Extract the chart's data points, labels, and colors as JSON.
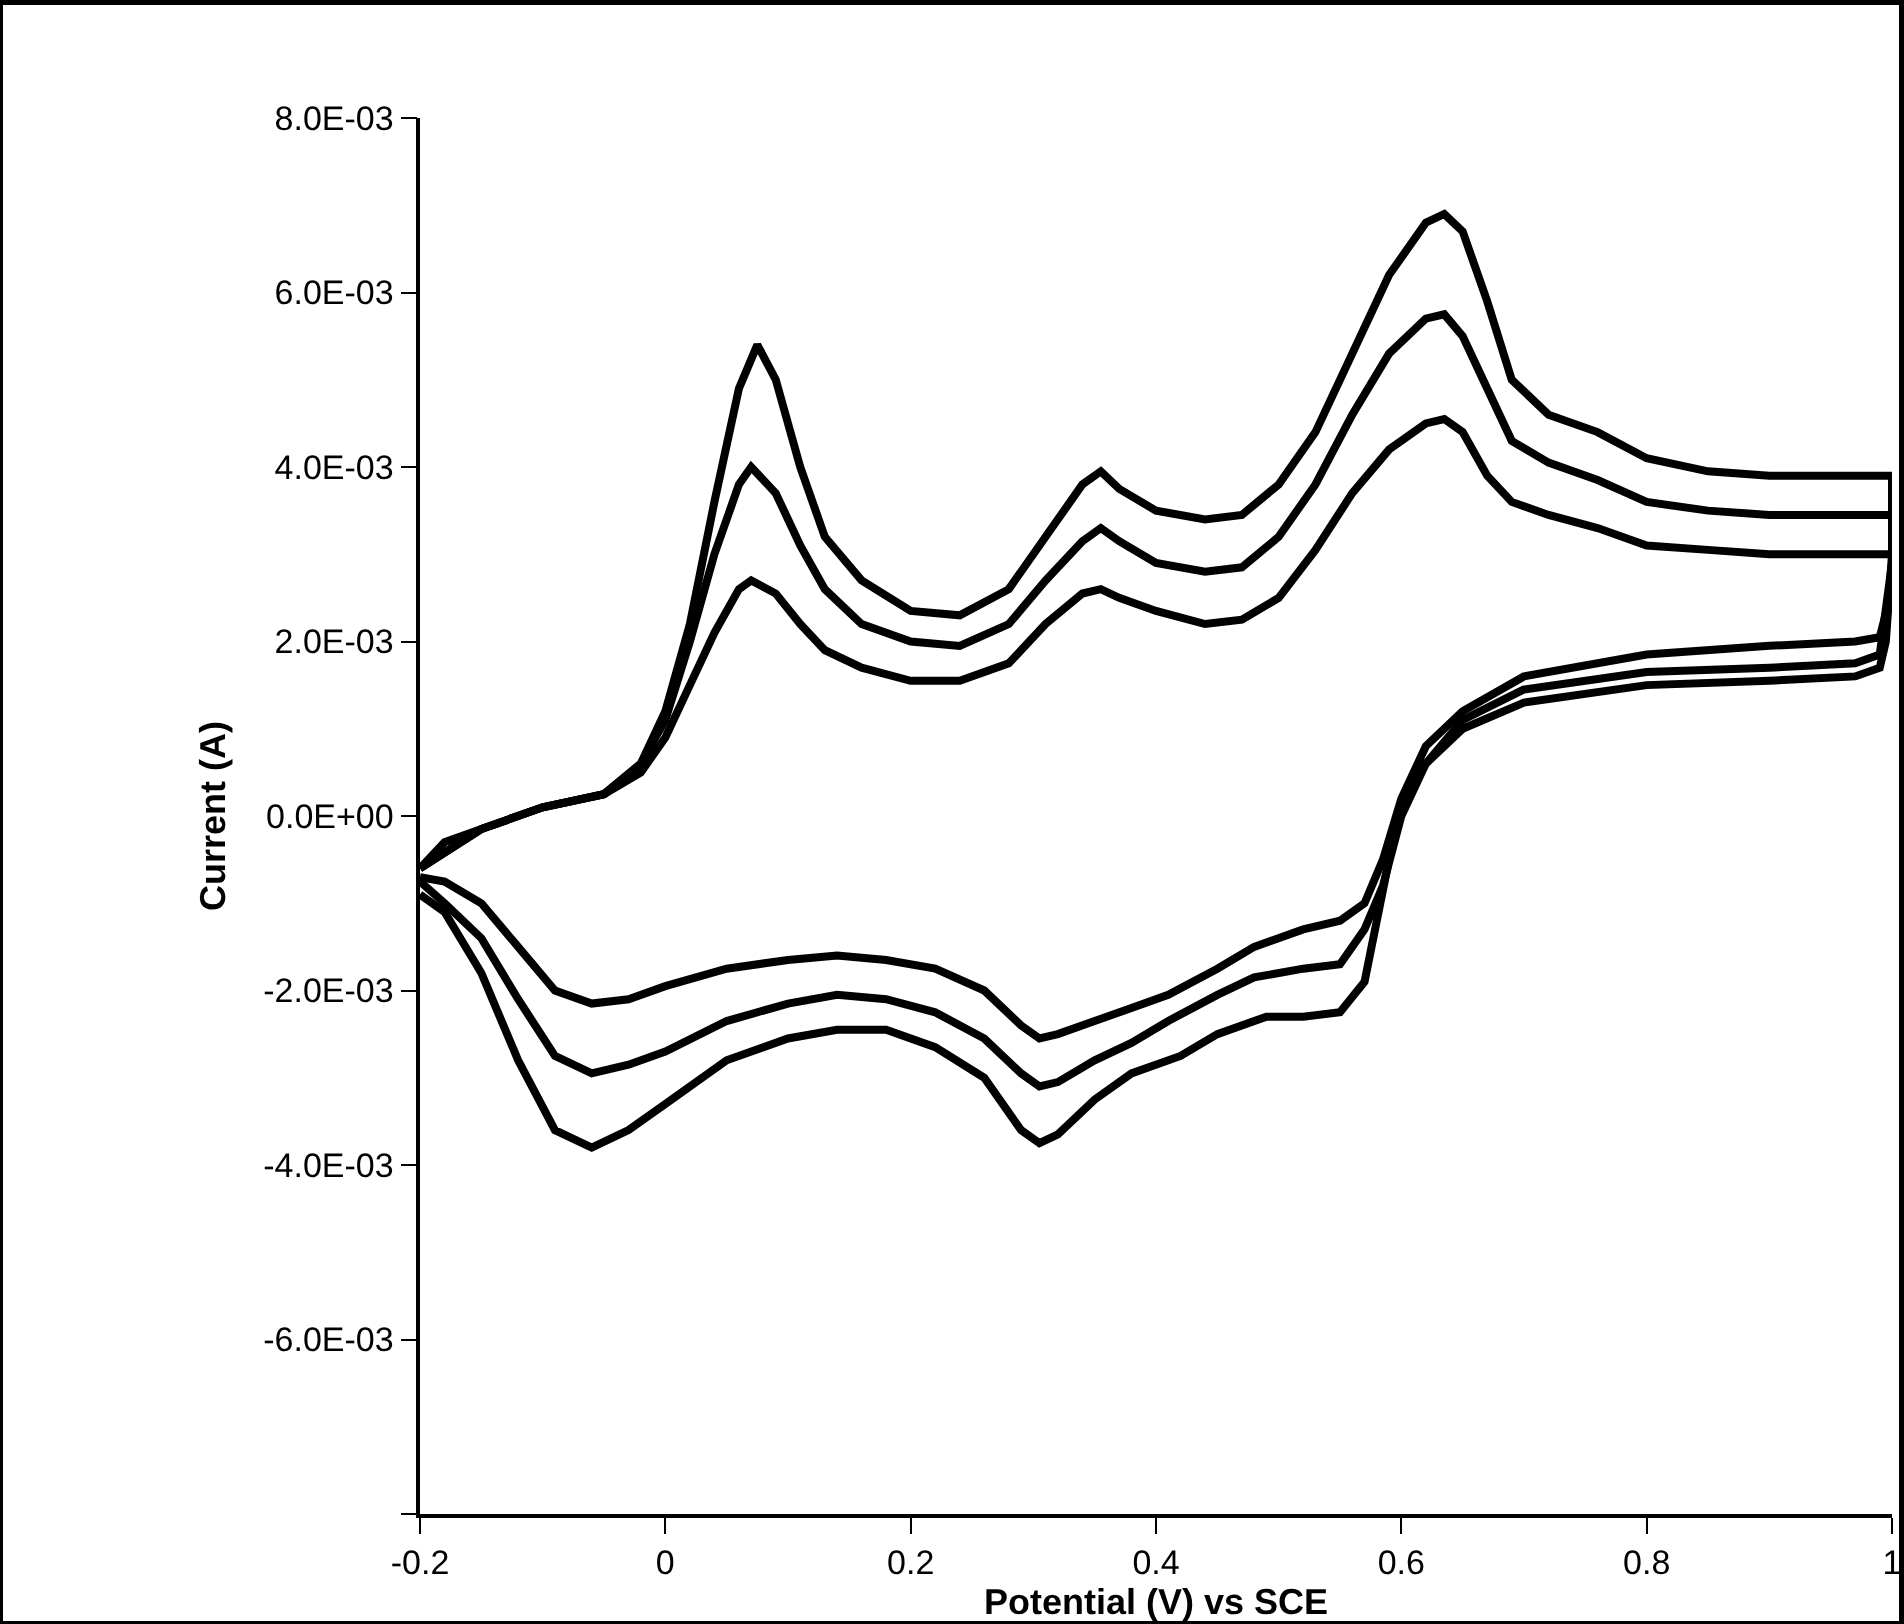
{
  "chart_data": {
    "type": "line",
    "xlabel": "Potential (V) vs SCE",
    "ylabel": "Current (A)",
    "xlim": [
      -0.2,
      1
    ],
    "xticks": [
      -0.2,
      0,
      0.2,
      0.4,
      0.6,
      0.8,
      1
    ],
    "ylim": [
      -0.008,
      0.008
    ],
    "yticks": [
      {
        "value": 0.008,
        "label": "8.0E-03"
      },
      {
        "value": 0.006,
        "label": "6.0E-03"
      },
      {
        "value": 0.004,
        "label": "4.0E-03"
      },
      {
        "value": 0.002,
        "label": "2.0E-03"
      },
      {
        "value": 0,
        "label": "0.0E+00"
      },
      {
        "value": -0.002,
        "label": "-2.0E-03"
      },
      {
        "value": -0.004,
        "label": "-4.0E-03"
      },
      {
        "value": -0.006,
        "label": "-6.0E-03"
      },
      {
        "value": -0.008,
        "label": null
      }
    ],
    "grid": false,
    "line_style": "solid",
    "series": [
      {
        "color": "#000000",
        "x": [
          -0.2,
          -0.18,
          -0.15,
          -0.1,
          -0.05,
          -0.02,
          0.0,
          0.02,
          0.04,
          0.06,
          0.075,
          0.09,
          0.11,
          0.13,
          0.16,
          0.2,
          0.24,
          0.28,
          0.31,
          0.34,
          0.355,
          0.37,
          0.4,
          0.44,
          0.47,
          0.5,
          0.53,
          0.56,
          0.59,
          0.62,
          0.635,
          0.65,
          0.67,
          0.69,
          0.72,
          0.76,
          0.8,
          0.85,
          0.9,
          0.95,
          1.0,
          1.0,
          0.995,
          0.99,
          0.97,
          0.9,
          0.8,
          0.7,
          0.65,
          0.62,
          0.6,
          0.59,
          0.58,
          0.57,
          0.55,
          0.52,
          0.49,
          0.45,
          0.42,
          0.38,
          0.35,
          0.32,
          0.305,
          0.29,
          0.26,
          0.22,
          0.18,
          0.14,
          0.1,
          0.05,
          0.0,
          -0.03,
          -0.06,
          -0.09,
          -0.12,
          -0.15,
          -0.18,
          -0.2
        ],
        "values": [
          -0.0006,
          -0.0003,
          -0.00015,
          0.0001,
          0.00025,
          0.0006,
          0.0012,
          0.0022,
          0.0036,
          0.0049,
          0.0054,
          0.005,
          0.004,
          0.0032,
          0.0027,
          0.00235,
          0.0023,
          0.0026,
          0.0032,
          0.0038,
          0.00395,
          0.00375,
          0.0035,
          0.0034,
          0.00345,
          0.0038,
          0.0044,
          0.0053,
          0.0062,
          0.0068,
          0.0069,
          0.0067,
          0.0059,
          0.005,
          0.0046,
          0.0044,
          0.0041,
          0.00395,
          0.0039,
          0.0039,
          0.0039,
          0.003,
          0.002,
          0.0017,
          0.0016,
          0.00155,
          0.0015,
          0.0013,
          0.001,
          0.0006,
          0.0001,
          -0.0005,
          -0.0012,
          -0.0019,
          -0.00225,
          -0.0023,
          -0.0023,
          -0.0025,
          -0.00275,
          -0.00295,
          -0.00325,
          -0.00365,
          -0.00375,
          -0.0036,
          -0.003,
          -0.00265,
          -0.00245,
          -0.00245,
          -0.00255,
          -0.0028,
          -0.0033,
          -0.0036,
          -0.0038,
          -0.0036,
          -0.0028,
          -0.0018,
          -0.0011,
          -0.0009
        ]
      },
      {
        "color": "#000000",
        "x": [
          -0.2,
          -0.15,
          -0.1,
          -0.05,
          -0.02,
          0.0,
          0.02,
          0.04,
          0.06,
          0.07,
          0.09,
          0.11,
          0.13,
          0.16,
          0.2,
          0.24,
          0.28,
          0.31,
          0.34,
          0.355,
          0.37,
          0.4,
          0.44,
          0.47,
          0.5,
          0.53,
          0.56,
          0.59,
          0.62,
          0.635,
          0.65,
          0.67,
          0.69,
          0.72,
          0.76,
          0.8,
          0.85,
          0.9,
          1.0,
          1.0,
          0.99,
          0.97,
          0.9,
          0.8,
          0.7,
          0.65,
          0.62,
          0.6,
          0.585,
          0.57,
          0.55,
          0.52,
          0.48,
          0.45,
          0.41,
          0.38,
          0.35,
          0.32,
          0.305,
          0.29,
          0.26,
          0.22,
          0.18,
          0.14,
          0.1,
          0.05,
          0.0,
          -0.03,
          -0.06,
          -0.09,
          -0.12,
          -0.15,
          -0.18,
          -0.2
        ],
        "values": [
          -0.0006,
          -0.00015,
          0.0001,
          0.00025,
          0.0006,
          0.0011,
          0.002,
          0.003,
          0.0038,
          0.004,
          0.0037,
          0.0031,
          0.0026,
          0.0022,
          0.002,
          0.00195,
          0.0022,
          0.0027,
          0.00315,
          0.0033,
          0.00315,
          0.0029,
          0.0028,
          0.00285,
          0.0032,
          0.0038,
          0.0046,
          0.0053,
          0.0057,
          0.00575,
          0.0055,
          0.0049,
          0.0043,
          0.00405,
          0.00385,
          0.0036,
          0.0035,
          0.00345,
          0.00345,
          0.0029,
          0.00185,
          0.00175,
          0.0017,
          0.00165,
          0.00145,
          0.0011,
          0.0006,
          0.0,
          -0.0008,
          -0.0013,
          -0.0017,
          -0.00175,
          -0.00185,
          -0.00205,
          -0.00235,
          -0.0026,
          -0.0028,
          -0.00305,
          -0.0031,
          -0.00295,
          -0.00255,
          -0.00225,
          -0.0021,
          -0.00205,
          -0.00215,
          -0.00235,
          -0.0027,
          -0.00285,
          -0.00295,
          -0.00275,
          -0.0021,
          -0.0014,
          -0.001,
          -0.00075
        ]
      },
      {
        "color": "#000000",
        "x": [
          -0.2,
          -0.15,
          -0.1,
          -0.05,
          -0.02,
          0.0,
          0.02,
          0.04,
          0.06,
          0.07,
          0.09,
          0.11,
          0.13,
          0.16,
          0.2,
          0.24,
          0.28,
          0.31,
          0.34,
          0.355,
          0.37,
          0.4,
          0.44,
          0.47,
          0.5,
          0.53,
          0.56,
          0.59,
          0.62,
          0.635,
          0.65,
          0.67,
          0.69,
          0.72,
          0.76,
          0.8,
          0.85,
          0.9,
          1.0,
          1.0,
          0.99,
          0.97,
          0.9,
          0.8,
          0.7,
          0.65,
          0.62,
          0.6,
          0.585,
          0.57,
          0.55,
          0.52,
          0.48,
          0.45,
          0.41,
          0.38,
          0.35,
          0.32,
          0.305,
          0.29,
          0.26,
          0.22,
          0.18,
          0.14,
          0.1,
          0.05,
          0.0,
          -0.03,
          -0.06,
          -0.09,
          -0.12,
          -0.15,
          -0.18,
          -0.2
        ],
        "values": [
          -0.0006,
          -0.00015,
          0.0001,
          0.00025,
          0.0005,
          0.0009,
          0.0015,
          0.0021,
          0.0026,
          0.0027,
          0.00255,
          0.0022,
          0.0019,
          0.0017,
          0.00155,
          0.00155,
          0.00175,
          0.0022,
          0.00255,
          0.0026,
          0.0025,
          0.00235,
          0.0022,
          0.00225,
          0.0025,
          0.00305,
          0.0037,
          0.0042,
          0.0045,
          0.00455,
          0.0044,
          0.0039,
          0.0036,
          0.00345,
          0.0033,
          0.0031,
          0.00305,
          0.003,
          0.003,
          0.0026,
          0.00205,
          0.002,
          0.00195,
          0.00185,
          0.0016,
          0.0012,
          0.0008,
          0.0002,
          -0.0005,
          -0.001,
          -0.0012,
          -0.0013,
          -0.0015,
          -0.00175,
          -0.00205,
          -0.0022,
          -0.00235,
          -0.0025,
          -0.00255,
          -0.0024,
          -0.002,
          -0.00175,
          -0.00165,
          -0.0016,
          -0.00165,
          -0.00175,
          -0.00195,
          -0.0021,
          -0.00215,
          -0.002,
          -0.0015,
          -0.001,
          -0.00075,
          -0.0007
        ]
      }
    ]
  }
}
